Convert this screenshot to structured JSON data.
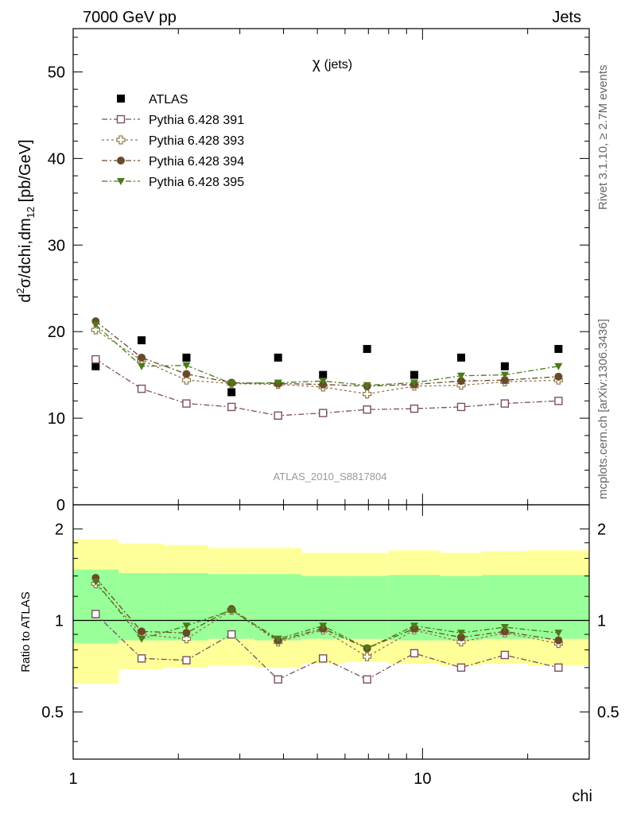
{
  "header": {
    "left_title": "7000 GeV pp",
    "right_title": "Jets"
  },
  "side_labels": {
    "rivet": "Rivet 3.1.10, ≥ 2.7M events",
    "mcplots": "mcplots.cern.ch [arXiv:1306.3436]"
  },
  "chart_data": {
    "type": "scatter",
    "title": "χ (jets)",
    "title_symbol": "χ",
    "title_rest": "(jets)",
    "analysis_tag": "ATLAS_2010_S8817804",
    "xlabel": "chi",
    "x_scale": "log",
    "xlim": [
      1,
      30
    ],
    "x_ticks": [
      1,
      10
    ],
    "x_tick_labels": [
      "1",
      "10"
    ],
    "x_bin_edges": [
      1.0,
      1.35,
      1.82,
      2.44,
      3.3,
      4.5,
      6.0,
      8.0,
      11.2,
      14.8,
      20.0,
      30.0
    ],
    "x": [
      1.16,
      1.57,
      2.11,
      2.84,
      3.86,
      5.19,
      6.94,
      9.47,
      12.9,
      17.2,
      24.5
    ],
    "main_panel": {
      "ylabel": "d²σ/dchi,dm₁₂ [pb/GeV]",
      "ylabel_parts": {
        "d": "d",
        "sup": "2",
        "mid": "σ/dchi,dm",
        "sub": "12",
        "unit": " [pb/GeV]"
      },
      "ylim": [
        0,
        55
      ],
      "y_ticks": [
        0,
        10,
        20,
        30,
        40,
        50
      ],
      "y_tick_labels": [
        "0",
        "10",
        "20",
        "30",
        "40",
        "50"
      ],
      "legend_position": "top-left",
      "series": [
        {
          "name": "ATLAS",
          "marker": "filled-square",
          "line": "none",
          "color": "#000000",
          "values": [
            16.0,
            19.0,
            17.0,
            13.0,
            17.0,
            15.0,
            18.0,
            15.0,
            17.0,
            16.0,
            18.0
          ]
        },
        {
          "name": "Pythia 6.428 391",
          "marker": "open-square",
          "line": "dash-dot",
          "color": "#7a4f5f",
          "values": [
            16.8,
            13.4,
            11.7,
            11.3,
            10.3,
            10.6,
            11.0,
            11.1,
            11.3,
            11.7,
            12.0
          ]
        },
        {
          "name": "Pythia 6.428 393",
          "marker": "open-cross",
          "line": "dotted",
          "color": "#8f7a4a",
          "values": [
            20.2,
            16.7,
            14.4,
            14.0,
            13.9,
            13.6,
            12.8,
            13.7,
            13.8,
            14.2,
            14.4
          ]
        },
        {
          "name": "Pythia 6.428 394",
          "marker": "filled-circle",
          "line": "dash-dot",
          "color": "#6b4a2a",
          "values": [
            21.2,
            17.0,
            15.1,
            14.1,
            14.0,
            13.9,
            13.7,
            13.9,
            14.3,
            14.4,
            14.8
          ]
        },
        {
          "name": "Pythia 6.428 395",
          "marker": "filled-triangle-down",
          "line": "dash-dot",
          "color": "#4a7a1a",
          "values": [
            20.8,
            16.0,
            16.1,
            14.0,
            14.1,
            14.3,
            13.8,
            14.1,
            14.9,
            15.0,
            16.0
          ]
        }
      ]
    },
    "ratio_panel": {
      "ylabel": "Ratio to ATLAS",
      "y_scale": "log",
      "ylim": [
        0.35,
        2.4
      ],
      "y_ticks": [
        0.5,
        1,
        2
      ],
      "y_tick_labels": [
        "0.5",
        "1",
        "2"
      ],
      "band_yellow": {
        "color": "#ffff99",
        "low": [
          0.62,
          0.69,
          0.7,
          0.71,
          0.7,
          0.72,
          0.73,
          0.72,
          0.71,
          0.72,
          0.71
        ],
        "high": [
          1.85,
          1.79,
          1.77,
          1.73,
          1.73,
          1.67,
          1.67,
          1.7,
          1.67,
          1.69,
          1.7
        ]
      },
      "band_green": {
        "color": "#99ff99",
        "low": [
          0.84,
          0.86,
          0.86,
          0.87,
          0.86,
          0.87,
          0.87,
          0.86,
          0.86,
          0.87,
          0.87
        ],
        "high": [
          1.47,
          1.43,
          1.43,
          1.42,
          1.42,
          1.4,
          1.4,
          1.41,
          1.4,
          1.41,
          1.41
        ]
      },
      "series": [
        {
          "name": "Pythia 6.428 391",
          "values": [
            1.05,
            0.75,
            0.74,
            0.9,
            0.64,
            0.75,
            0.64,
            0.78,
            0.7,
            0.77,
            0.7
          ]
        },
        {
          "name": "Pythia 6.428 393",
          "values": [
            1.32,
            0.9,
            0.87,
            1.08,
            0.85,
            0.93,
            0.76,
            0.93,
            0.85,
            0.91,
            0.84
          ]
        },
        {
          "name": "Pythia 6.428 394",
          "values": [
            1.38,
            0.92,
            0.91,
            1.09,
            0.86,
            0.94,
            0.81,
            0.94,
            0.88,
            0.92,
            0.86
          ]
        },
        {
          "name": "Pythia 6.428 395",
          "values": [
            1.34,
            0.87,
            0.96,
            1.08,
            0.87,
            0.96,
            0.81,
            0.96,
            0.91,
            0.95,
            0.91
          ]
        }
      ]
    }
  }
}
